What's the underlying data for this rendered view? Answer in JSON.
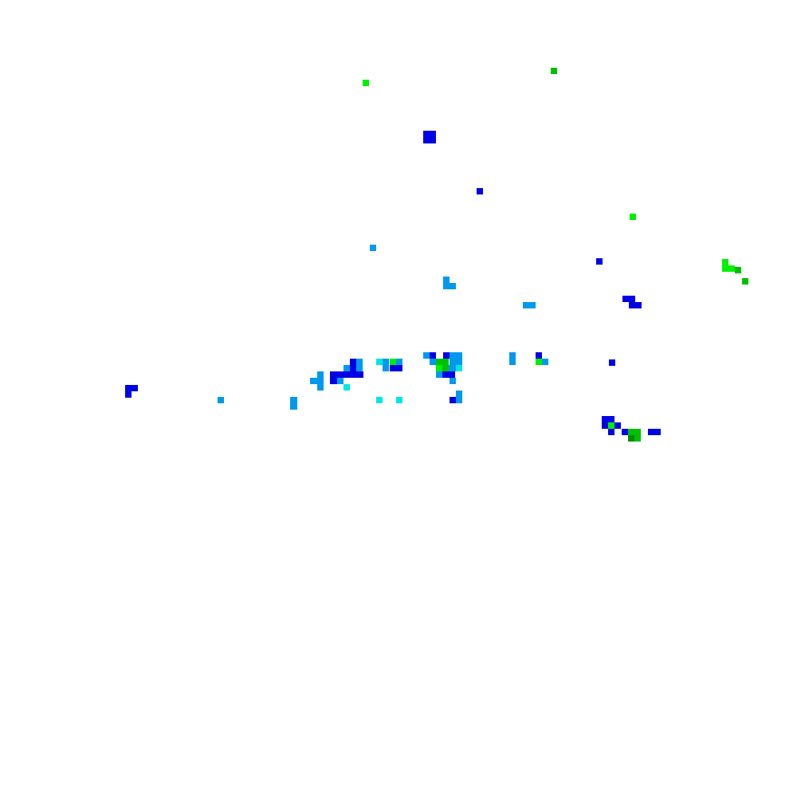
{
  "map": {
    "layer": "precipitation-radar-tile",
    "colors": {
      "blue": "#0000e6",
      "lightblue": "#0099ee",
      "cyan": "#00e6e6",
      "lime": "#00f000",
      "green": "#00c000",
      "darkgreen": "#008c00"
    }
  }
}
